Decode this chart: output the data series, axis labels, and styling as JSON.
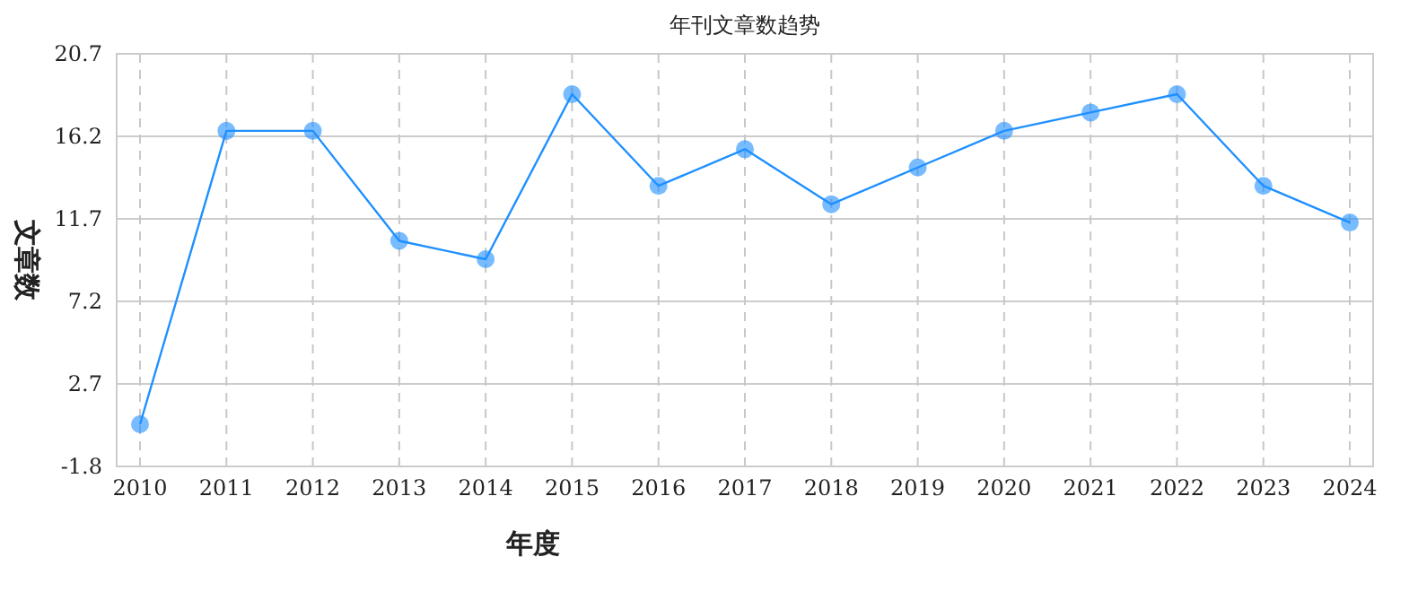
{
  "chart_data": {
    "type": "line",
    "title": "年刊文章数趋势",
    "xlabel": "年度",
    "ylabel": "文章数",
    "categories": [
      "2010",
      "2011",
      "2012",
      "2013",
      "2014",
      "2015",
      "2016",
      "2017",
      "2018",
      "2019",
      "2020",
      "2021",
      "2022",
      "2023",
      "2024"
    ],
    "series": [
      {
        "color": "#1e90ff",
        "values": [
          0.5,
          16.5,
          16.5,
          10.5,
          9.5,
          18.5,
          13.5,
          15.5,
          12.5,
          14.5,
          16.5,
          17.5,
          18.5,
          13.5,
          11.5
        ]
      }
    ],
    "ylim": [
      -1.8,
      20.7
    ],
    "yticks": [
      -1.8,
      2.7,
      7.2,
      11.7,
      16.2,
      20.7
    ],
    "grid": true,
    "marker": "circle",
    "line_style": "solid"
  }
}
